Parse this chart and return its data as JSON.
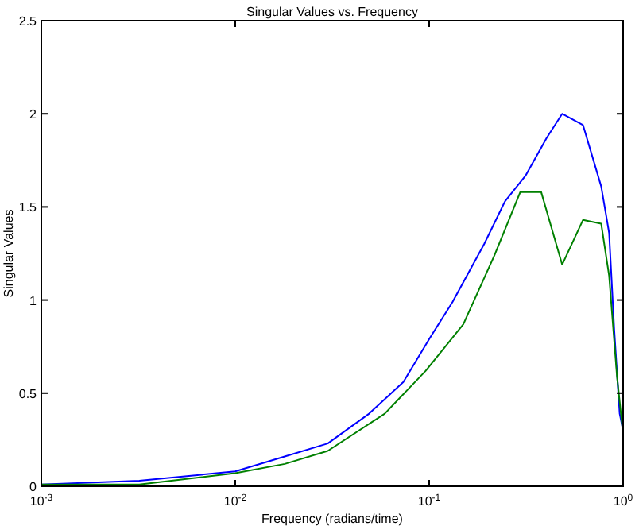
{
  "chart_data": {
    "type": "line",
    "title": "Singular Values vs. Frequency",
    "xlabel": "Frequency (radians/time)",
    "ylabel": "Singular Values",
    "log": "x",
    "grid": false,
    "xlim": [
      0.001,
      1
    ],
    "ylim": [
      0,
      2.5
    ],
    "xticks": [
      {
        "value": 0.001,
        "label": "10$^{-3}$"
      },
      {
        "value": 0.01,
        "label": "10$^{-2}$"
      },
      {
        "value": 0.1,
        "label": "10$^{-1}$"
      },
      {
        "value": 1,
        "label": "10$^{0}$"
      }
    ],
    "yticks": [
      0,
      0.5,
      1,
      1.5,
      2,
      2.5
    ],
    "series": [
      {
        "color": "#0000ff",
        "x": [
          0.001,
          0.0032,
          0.01,
          0.018,
          0.03,
          0.049,
          0.0736,
          0.1,
          0.132,
          0.192,
          0.246,
          0.315,
          0.403,
          0.485,
          0.621,
          0.771,
          0.847,
          0.9,
          0.96,
          1
        ],
        "values": [
          0.01,
          0.03,
          0.08,
          0.16,
          0.23,
          0.39,
          0.56,
          0.79,
          0.99,
          1.3,
          1.53,
          1.67,
          1.87,
          2.0,
          1.94,
          1.61,
          1.36,
          0.84,
          0.39,
          0.3
        ]
      },
      {
        "color": "#008000",
        "x": [
          0.001,
          0.0032,
          0.01,
          0.018,
          0.03,
          0.059,
          0.096,
          0.15,
          0.217,
          0.295,
          0.378,
          0.485,
          0.621,
          0.771,
          0.847,
          0.93,
          1
        ],
        "values": [
          0.01,
          0.01,
          0.07,
          0.12,
          0.19,
          0.39,
          0.62,
          0.87,
          1.24,
          1.58,
          1.58,
          1.19,
          1.43,
          1.41,
          1.13,
          0.59,
          0.28
        ]
      }
    ]
  }
}
